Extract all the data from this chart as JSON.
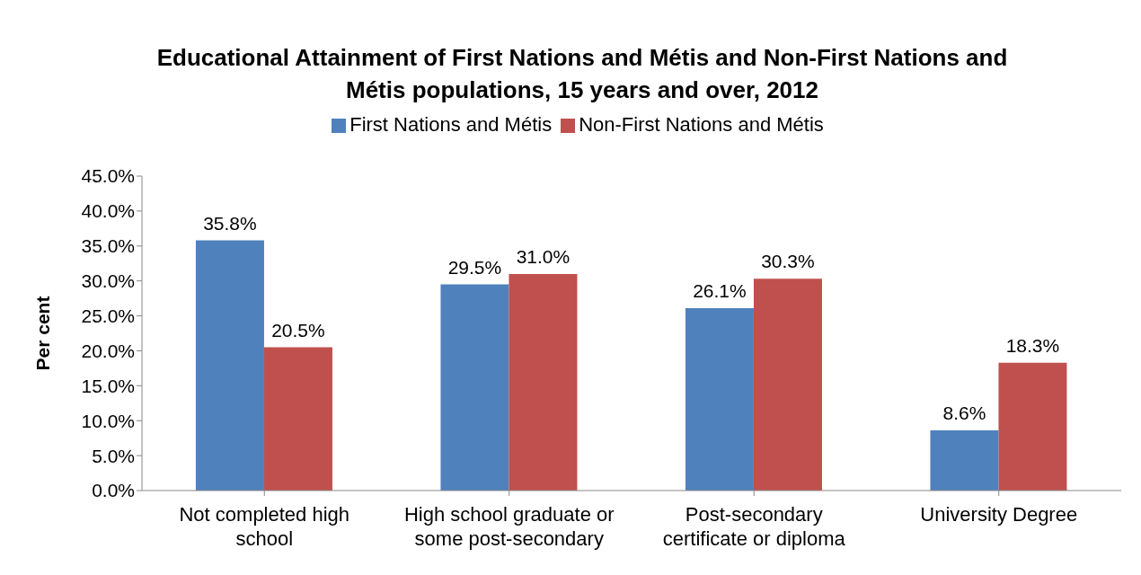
{
  "chart_data": {
    "type": "bar",
    "title": "Educational Attainment of First Nations and Métis and Non-First Nations and Métis populations, 15 years and over, 2012",
    "ylabel": "Per cent",
    "categories": [
      "Not completed high school",
      "High school graduate or some post-secondary",
      "Post-secondary certificate or diploma",
      "University Degree"
    ],
    "series": [
      {
        "name": "First Nations and Métis",
        "color": "#4f81bd",
        "values": [
          35.8,
          29.5,
          26.1,
          8.6
        ],
        "value_labels": [
          "35.8%",
          "29.5%",
          "26.1%",
          "8.6%"
        ]
      },
      {
        "name": "Non-First Nations and Métis",
        "color": "#c0504d",
        "values": [
          20.5,
          31.0,
          30.3,
          18.3
        ],
        "value_labels": [
          "20.5%",
          "31.0%",
          "30.3%",
          "18.3%"
        ]
      }
    ],
    "ylim": [
      0,
      45
    ],
    "yticks": [
      {
        "value": 0,
        "label": "0.0%"
      },
      {
        "value": 5,
        "label": "5.0%"
      },
      {
        "value": 10,
        "label": "10.0%"
      },
      {
        "value": 15,
        "label": "15.0%"
      },
      {
        "value": 20,
        "label": "20.0%"
      },
      {
        "value": 25,
        "label": "25.0%"
      },
      {
        "value": 30,
        "label": "30.0%"
      },
      {
        "value": 35,
        "label": "35.0%"
      },
      {
        "value": 40,
        "label": "40.0%"
      },
      {
        "value": 45,
        "label": "45.0%"
      }
    ],
    "grid": false,
    "legend": "top"
  }
}
